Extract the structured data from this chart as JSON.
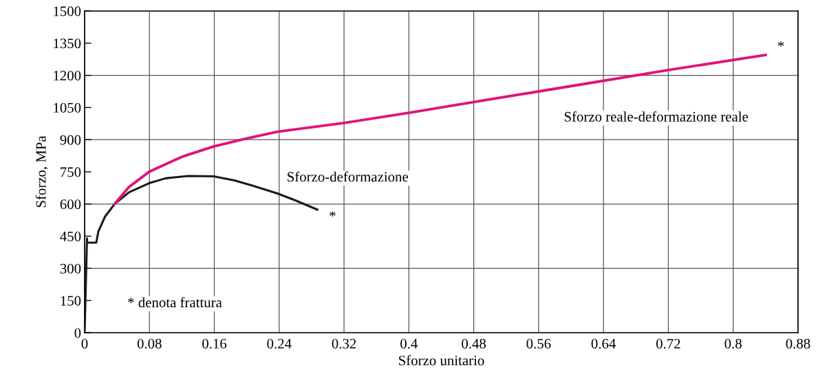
{
  "chart_data": {
    "type": "line",
    "xlabel": "Sforzo unitario",
    "ylabel": "Sforzo, MPa",
    "xlim": [
      0,
      0.88
    ],
    "ylim": [
      0,
      1500
    ],
    "xticks": [
      0,
      0.08,
      0.16,
      0.24,
      0.32,
      0.4,
      0.48,
      0.56,
      0.64,
      0.72,
      0.8,
      0.88
    ],
    "yticks": [
      0,
      150,
      300,
      450,
      600,
      750,
      900,
      1050,
      1200,
      1350,
      1500
    ],
    "grid": true,
    "legend": false,
    "marker": "none",
    "line_style": "solid",
    "series": [
      {
        "name": "Sforzo-deformazione",
        "color": "#1a1a1a",
        "x": [
          0,
          0.003,
          0.003,
          0.0144,
          0.017,
          0.025,
          0.037,
          0.055,
          0.0795,
          0.1,
          0.128,
          0.159,
          0.185,
          0.207,
          0.238,
          0.26,
          0.287
        ],
        "values": [
          0,
          440,
          420,
          420,
          472,
          540,
          600,
          655,
          697,
          720,
          731,
          729,
          710,
          686,
          649,
          617,
          574
        ]
      },
      {
        "name": "Sforzo reale-deformazione reale",
        "color": "#e0147a",
        "x": [
          0.037,
          0.055,
          0.0795,
          0.12,
          0.159,
          0.2,
          0.238,
          0.32,
          0.4,
          0.479,
          0.56,
          0.6375,
          0.72,
          0.84
        ],
        "values": [
          600,
          680,
          750,
          820,
          868,
          906,
          937,
          978,
          1025,
          1075,
          1125,
          1173,
          1225,
          1295
        ]
      }
    ],
    "annotations": [
      {
        "text": "*",
        "x": 0.287,
        "y": 574
      },
      {
        "text": "*",
        "x": 0.84,
        "y": 1295
      },
      "* denota frattura"
    ]
  }
}
